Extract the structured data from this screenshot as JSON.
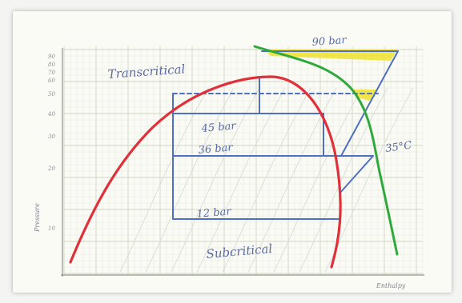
{
  "diagram": {
    "y_axis_label": "Pressure",
    "x_axis_label": "Enthalpy",
    "region_labels": {
      "transcritical": "Transcritical",
      "subcritical": "Subcritical"
    },
    "pressure_labels": [
      "90 bar",
      "45 bar",
      "36 bar",
      "12 bar"
    ],
    "isotherm_label": "35°C",
    "y_tick_labels": [
      "90",
      "80",
      "70",
      "60",
      "50",
      "40",
      "30",
      "20",
      "10"
    ],
    "colors": {
      "saturation_dome": "#e0303a",
      "isotherm": "#2fa83c",
      "cycle_lines": "#4f6fc0",
      "highlight": "#f0e23a",
      "grid_major": "#cfd6c2",
      "grid_minor": "#e3e8da",
      "isentropes": "#d9dcd6",
      "ink": "#5a6aa0"
    }
  }
}
